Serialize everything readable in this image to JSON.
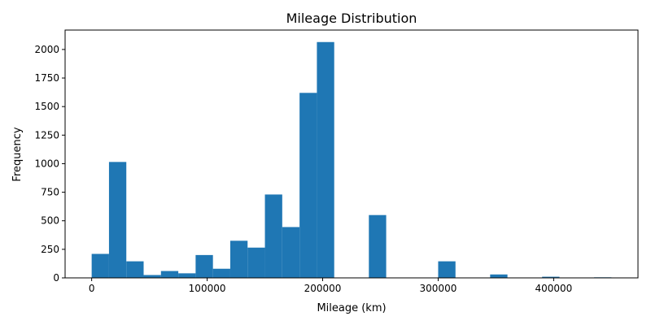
{
  "chart_data": {
    "type": "bar",
    "title": "Mileage Distribution",
    "xlabel": "Mileage (km)",
    "ylabel": "Frequency",
    "bin_width": 15000,
    "xlim": [
      -23000,
      473000
    ],
    "ylim": [
      0,
      2170
    ],
    "grid": false,
    "bar_color": "#1f77b4",
    "xticks": [
      0,
      100000,
      200000,
      300000,
      400000
    ],
    "xtick_labels": [
      "0",
      "100000",
      "200000",
      "300000",
      "400000"
    ],
    "yticks": [
      0,
      250,
      500,
      750,
      1000,
      1250,
      1500,
      1750,
      2000
    ],
    "ytick_labels": [
      "0",
      "250",
      "500",
      "750",
      "1000",
      "1250",
      "1500",
      "1750",
      "2000"
    ],
    "bins": [
      {
        "start": 0,
        "value": 210
      },
      {
        "start": 15000,
        "value": 1015
      },
      {
        "start": 30000,
        "value": 145
      },
      {
        "start": 45000,
        "value": 25
      },
      {
        "start": 60000,
        "value": 60
      },
      {
        "start": 75000,
        "value": 40
      },
      {
        "start": 90000,
        "value": 200
      },
      {
        "start": 105000,
        "value": 80
      },
      {
        "start": 120000,
        "value": 325
      },
      {
        "start": 135000,
        "value": 265
      },
      {
        "start": 150000,
        "value": 730
      },
      {
        "start": 165000,
        "value": 445
      },
      {
        "start": 180000,
        "value": 1620
      },
      {
        "start": 195000,
        "value": 2065
      },
      {
        "start": 210000,
        "value": 0
      },
      {
        "start": 225000,
        "value": 0
      },
      {
        "start": 240000,
        "value": 550
      },
      {
        "start": 255000,
        "value": 0
      },
      {
        "start": 270000,
        "value": 0
      },
      {
        "start": 285000,
        "value": 0
      },
      {
        "start": 300000,
        "value": 145
      },
      {
        "start": 315000,
        "value": 0
      },
      {
        "start": 330000,
        "value": 0
      },
      {
        "start": 345000,
        "value": 30
      },
      {
        "start": 360000,
        "value": 0
      },
      {
        "start": 375000,
        "value": 0
      },
      {
        "start": 390000,
        "value": 10
      },
      {
        "start": 405000,
        "value": 0
      },
      {
        "start": 420000,
        "value": 0
      },
      {
        "start": 435000,
        "value": 5
      }
    ]
  }
}
